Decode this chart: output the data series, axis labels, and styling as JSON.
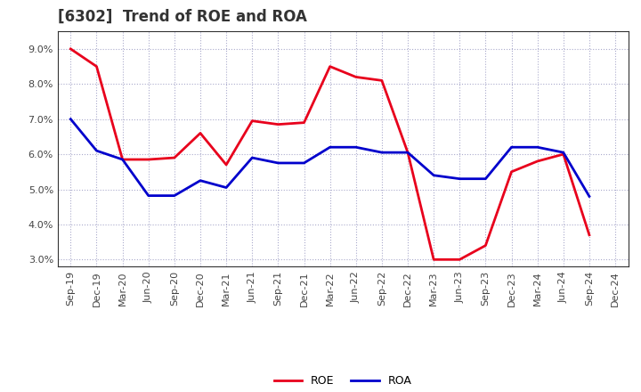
{
  "title": "[6302]  Trend of ROE and ROA",
  "x_labels": [
    "Sep-19",
    "Dec-19",
    "Mar-20",
    "Jun-20",
    "Sep-20",
    "Dec-20",
    "Mar-21",
    "Jun-21",
    "Sep-21",
    "Dec-21",
    "Mar-22",
    "Jun-22",
    "Sep-22",
    "Dec-22",
    "Mar-23",
    "Jun-23",
    "Sep-23",
    "Dec-23",
    "Mar-24",
    "Jun-24",
    "Sep-24",
    "Dec-24"
  ],
  "roe": [
    9.0,
    8.5,
    5.85,
    5.85,
    5.9,
    6.6,
    5.7,
    6.95,
    6.85,
    6.9,
    8.5,
    8.2,
    8.1,
    6.05,
    3.0,
    3.0,
    3.4,
    5.5,
    5.8,
    6.0,
    3.7,
    null
  ],
  "roa": [
    7.0,
    6.1,
    5.85,
    4.82,
    4.82,
    5.25,
    5.05,
    5.9,
    5.75,
    5.75,
    6.2,
    6.2,
    6.05,
    6.05,
    5.4,
    5.3,
    5.3,
    6.2,
    6.2,
    6.05,
    4.8,
    null
  ],
  "roe_color": "#e8001c",
  "roa_color": "#0000cc",
  "background_color": "#ffffff",
  "grid_color": "#aaaacc",
  "ylim": [
    2.8,
    9.5
  ],
  "yticks": [
    3.0,
    4.0,
    5.0,
    6.0,
    7.0,
    8.0,
    9.0
  ],
  "legend_roe": "ROE",
  "legend_roa": "ROA",
  "title_fontsize": 12,
  "tick_fontsize": 8,
  "linewidth": 2.0
}
